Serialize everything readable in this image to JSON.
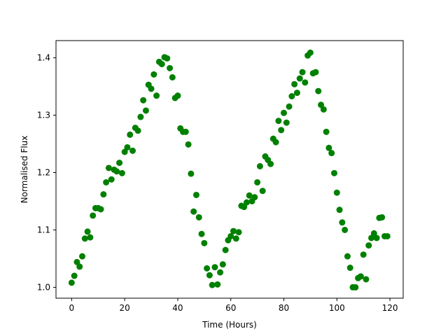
{
  "chart_data": {
    "type": "scatter",
    "title": "",
    "xlabel": "Time (Hours)",
    "ylabel": "Normalised Flux",
    "xlim": [
      -5.9,
      125
    ],
    "ylim": [
      0.981,
      1.43
    ],
    "xticks": [
      0,
      20,
      40,
      60,
      80,
      100,
      120
    ],
    "yticks": [
      1.0,
      1.1,
      1.2,
      1.3,
      1.4
    ],
    "ytick_labels": [
      "1.0",
      "1.1",
      "1.2",
      "1.3",
      "1.4"
    ],
    "grid": false,
    "marker_color": "#008000",
    "series": [
      {
        "x": [
          0,
          1,
          2,
          3,
          4,
          5,
          6,
          7,
          8,
          9,
          10,
          11,
          12,
          13,
          14,
          15,
          16,
          17,
          18,
          19,
          20,
          21,
          22,
          23,
          24,
          25,
          26,
          27,
          28,
          29,
          30,
          31,
          32,
          33,
          34,
          35,
          36,
          37,
          38,
          39,
          40,
          41,
          42,
          43,
          44,
          45,
          46,
          47,
          48,
          49,
          50,
          51,
          52,
          53,
          54,
          55,
          56,
          57,
          58,
          59,
          60,
          61,
          62,
          63,
          64,
          65,
          66,
          67,
          68,
          69,
          70,
          71,
          72,
          73,
          74,
          75,
          76,
          77,
          78,
          79,
          80,
          81,
          82,
          83,
          84,
          85,
          86,
          87,
          88,
          89,
          90,
          91,
          92,
          93,
          94,
          95,
          96,
          97,
          98,
          99,
          100,
          101,
          102,
          103,
          104,
          105,
          106,
          107,
          108,
          109,
          110,
          111,
          112,
          113,
          114,
          115,
          116,
          117,
          118,
          119
        ],
        "y": [
          1.008,
          1.02,
          1.044,
          1.036,
          1.054,
          1.085,
          1.097,
          1.087,
          1.125,
          1.138,
          1.138,
          1.136,
          1.162,
          1.183,
          1.208,
          1.188,
          1.205,
          1.202,
          1.217,
          1.199,
          1.236,
          1.244,
          1.266,
          1.238,
          1.278,
          1.273,
          1.297,
          1.326,
          1.308,
          1.353,
          1.346,
          1.371,
          1.334,
          1.393,
          1.389,
          1.401,
          1.399,
          1.382,
          1.366,
          1.33,
          1.334,
          1.277,
          1.271,
          1.271,
          1.249,
          1.198,
          1.132,
          1.161,
          1.122,
          1.093,
          1.077,
          1.033,
          1.021,
          1.004,
          1.035,
          1.005,
          1.026,
          1.04,
          1.065,
          1.082,
          1.089,
          1.098,
          1.085,
          1.096,
          1.142,
          1.14,
          1.148,
          1.16,
          1.15,
          1.157,
          1.183,
          1.211,
          1.168,
          1.228,
          1.222,
          1.215,
          1.259,
          1.253,
          1.29,
          1.274,
          1.304,
          1.287,
          1.315,
          1.333,
          1.354,
          1.339,
          1.364,
          1.375,
          1.357,
          1.404,
          1.409,
          1.373,
          1.375,
          1.342,
          1.318,
          1.31,
          1.271,
          1.243,
          1.234,
          1.199,
          1.165,
          1.135,
          1.113,
          1.1,
          1.054,
          1.034,
          1.0,
          1.0,
          1.016,
          1.019,
          1.057,
          1.014,
          1.073,
          1.086,
          1.094,
          1.086,
          1.121,
          1.122,
          1.089,
          1.089
        ]
      }
    ]
  }
}
